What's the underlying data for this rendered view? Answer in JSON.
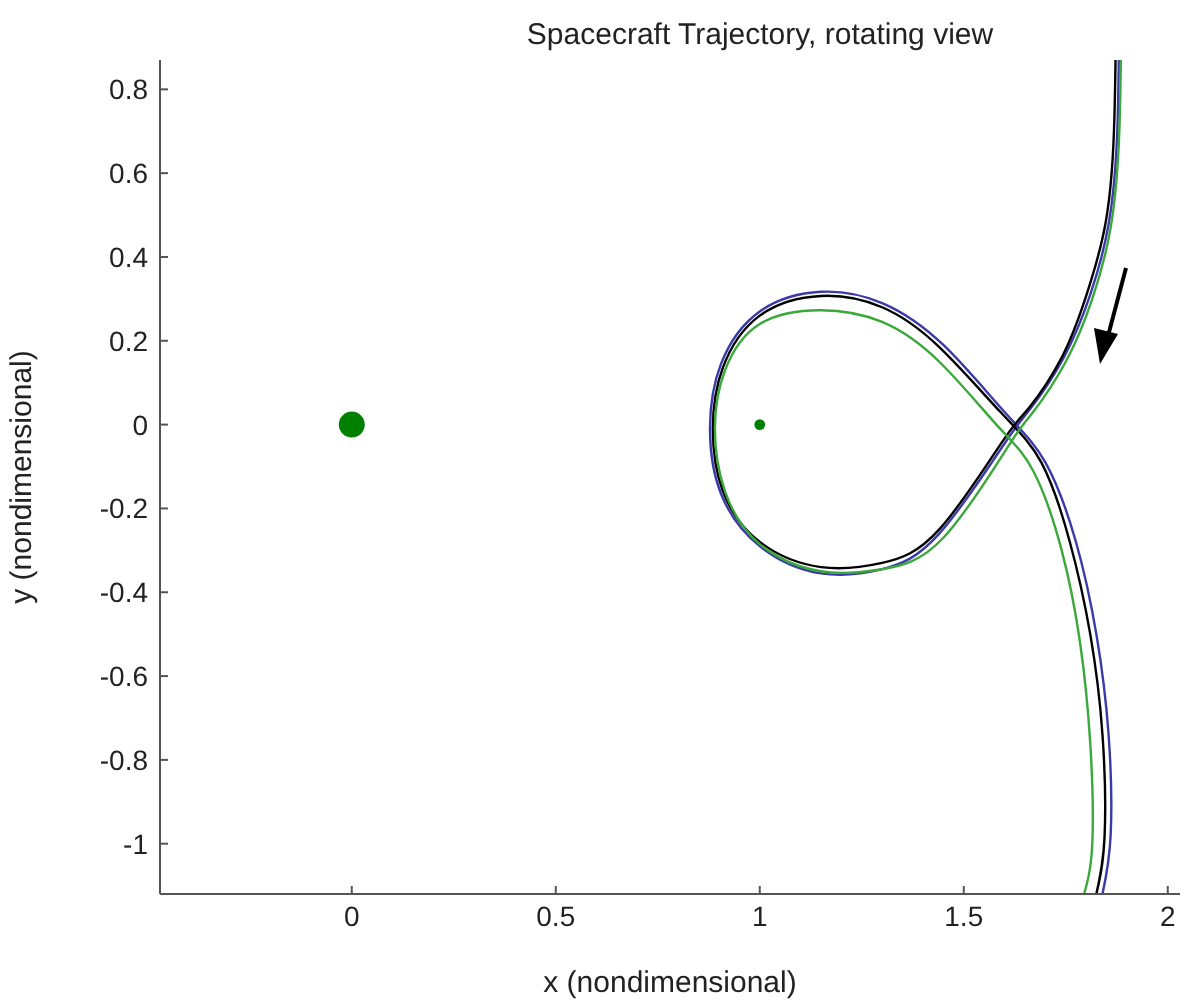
{
  "chart_data": {
    "type": "line",
    "title": "Spacecraft Trajectory, rotating view",
    "xlabel": "x (nondimensional)",
    "ylabel": "y (nondimensional)",
    "xlim": [
      -0.47,
      2.03
    ],
    "ylim": [
      -1.12,
      0.87
    ],
    "xticks": [
      0,
      0.5,
      1,
      1.5,
      2
    ],
    "yticks": [
      -1,
      -0.8,
      -0.6,
      -0.4,
      -0.2,
      0,
      0.2,
      0.4,
      0.6,
      0.8
    ],
    "grid": false,
    "line_style": "solid",
    "series": [
      {
        "color": "#3a3aa8",
        "x": [
          1.88,
          1.875,
          1.855,
          1.81,
          1.745,
          1.665,
          1.6,
          1.44,
          1.3,
          1.15,
          1.0,
          0.905,
          0.878,
          0.905,
          1.0,
          1.15,
          1.3,
          1.45,
          1.6,
          1.7,
          1.775,
          1.825,
          1.855,
          1.86,
          1.84
        ],
        "values": [
          0.87,
          0.67,
          0.478,
          0.31,
          0.16,
          0.04,
          -0.045,
          -0.26,
          -0.345,
          -0.355,
          -0.29,
          -0.165,
          -0.01,
          0.145,
          0.27,
          0.317,
          0.29,
          0.19,
          0.03,
          -0.09,
          -0.28,
          -0.5,
          -0.74,
          -0.98,
          -1.12
        ]
      },
      {
        "color": "#000000",
        "x": [
          1.872,
          1.867,
          1.847,
          1.8,
          1.74,
          1.66,
          1.595,
          1.44,
          1.3,
          1.15,
          1.0,
          0.91,
          0.885,
          0.91,
          1.0,
          1.15,
          1.3,
          1.44,
          1.59,
          1.69,
          1.76,
          1.81,
          1.84,
          1.845,
          1.825
        ],
        "values": [
          0.87,
          0.673,
          0.478,
          0.307,
          0.16,
          0.04,
          -0.04,
          -0.25,
          -0.33,
          -0.34,
          -0.28,
          -0.16,
          -0.01,
          0.137,
          0.26,
          0.307,
          0.28,
          0.185,
          0.03,
          -0.09,
          -0.28,
          -0.5,
          -0.74,
          -0.985,
          -1.12
        ]
      },
      {
        "color": "#3aa83a",
        "x": [
          1.885,
          1.88,
          1.86,
          1.815,
          1.75,
          1.67,
          1.61,
          1.45,
          1.3,
          1.15,
          1.0,
          0.915,
          0.89,
          0.915,
          1.0,
          1.15,
          1.3,
          1.44,
          1.58,
          1.67,
          1.74,
          1.785,
          1.81,
          1.815,
          1.795
        ],
        "values": [
          0.87,
          0.67,
          0.47,
          0.3,
          0.15,
          0.03,
          -0.05,
          -0.27,
          -0.345,
          -0.35,
          -0.285,
          -0.16,
          -0.01,
          0.13,
          0.24,
          0.273,
          0.245,
          0.15,
          0.0,
          -0.11,
          -0.3,
          -0.52,
          -0.76,
          -1.0,
          -1.12
        ]
      },
      {
        "type": "bubble",
        "color": "#008000",
        "x": [
          0,
          1
        ],
        "values": [
          0,
          0
        ],
        "sizes": [
          1,
          0.17
        ]
      }
    ]
  }
}
